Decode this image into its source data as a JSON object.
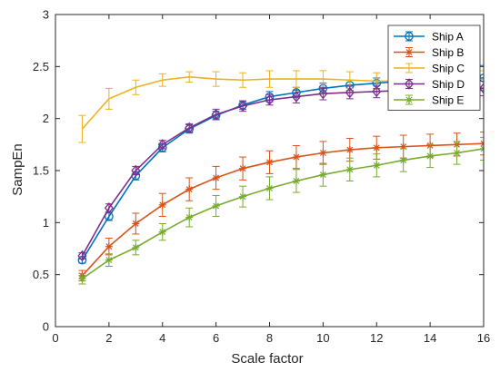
{
  "chart_data": {
    "type": "line",
    "xlabel": "Scale factor",
    "ylabel": "SampEn",
    "xlim": [
      0,
      16
    ],
    "ylim": [
      0,
      3
    ],
    "xticks": [
      0,
      2,
      4,
      6,
      8,
      10,
      12,
      14,
      16
    ],
    "yticks": [
      0,
      0.5,
      1,
      1.5,
      2,
      2.5,
      3
    ],
    "xtick_labels": [
      "0",
      "2",
      "4",
      "6",
      "8",
      "10",
      "12",
      "14",
      "16"
    ],
    "ytick_labels": [
      "0",
      "0.5",
      "1",
      "1.5",
      "2",
      "2.5",
      "3"
    ],
    "grid": false,
    "legend_position": "top-right",
    "x": [
      1,
      2,
      3,
      4,
      5,
      6,
      7,
      8,
      9,
      10,
      11,
      12,
      13,
      14,
      15,
      16
    ],
    "series": [
      {
        "name": "Ship A",
        "color": "#0072BD",
        "marker": "circle",
        "values": [
          0.64,
          1.06,
          1.45,
          1.72,
          1.9,
          2.03,
          2.13,
          2.21,
          2.25,
          2.29,
          2.32,
          2.34,
          2.36,
          2.37,
          2.38,
          2.39
        ],
        "errors": [
          0.03,
          0.04,
          0.04,
          0.04,
          0.04,
          0.04,
          0.04,
          0.05,
          0.05,
          0.05,
          0.05,
          0.05,
          0.06,
          0.06,
          0.1,
          0.12
        ]
      },
      {
        "name": "Ship B",
        "color": "#D95319",
        "marker": "star",
        "values": [
          0.49,
          0.77,
          0.99,
          1.17,
          1.32,
          1.43,
          1.52,
          1.58,
          1.63,
          1.67,
          1.7,
          1.72,
          1.73,
          1.74,
          1.75,
          1.76
        ],
        "errors": [
          0.05,
          0.08,
          0.1,
          0.11,
          0.11,
          0.11,
          0.11,
          0.11,
          0.11,
          0.11,
          0.11,
          0.11,
          0.11,
          0.11,
          0.11,
          0.11
        ]
      },
      {
        "name": "Ship C",
        "color": "#EDB120",
        "marker": "none",
        "values": [
          1.9,
          2.19,
          2.3,
          2.37,
          2.4,
          2.38,
          2.37,
          2.38,
          2.38,
          2.38,
          2.37,
          2.36,
          2.36,
          2.36,
          2.36,
          2.38
        ],
        "errors": [
          0.13,
          0.1,
          0.07,
          0.06,
          0.05,
          0.07,
          0.07,
          0.08,
          0.08,
          0.08,
          0.08,
          0.08,
          0.08,
          0.08,
          0.08,
          0.08
        ]
      },
      {
        "name": "Ship D",
        "color": "#7E2F8E",
        "marker": "diamond",
        "values": [
          0.68,
          1.14,
          1.5,
          1.75,
          1.91,
          2.04,
          2.12,
          2.18,
          2.21,
          2.24,
          2.25,
          2.26,
          2.27,
          2.27,
          2.28,
          2.29
        ],
        "errors": [
          0.03,
          0.04,
          0.04,
          0.04,
          0.04,
          0.05,
          0.05,
          0.05,
          0.06,
          0.06,
          0.06,
          0.06,
          0.06,
          0.06,
          0.06,
          0.07
        ]
      },
      {
        "name": "Ship E",
        "color": "#77AC30",
        "marker": "asterisk",
        "values": [
          0.46,
          0.64,
          0.76,
          0.91,
          1.05,
          1.16,
          1.25,
          1.33,
          1.4,
          1.46,
          1.51,
          1.55,
          1.6,
          1.64,
          1.67,
          1.71
        ],
        "errors": [
          0.05,
          0.06,
          0.07,
          0.08,
          0.09,
          0.1,
          0.1,
          0.11,
          0.11,
          0.11,
          0.11,
          0.11,
          0.11,
          0.11,
          0.11,
          0.11
        ]
      }
    ]
  }
}
